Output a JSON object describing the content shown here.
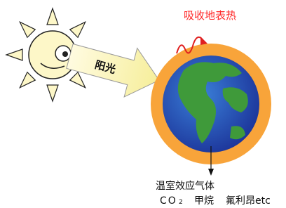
{
  "absorb_label": "吸收地表热",
  "sunlight_label": "阳光",
  "gas_title": "温室效应气体",
  "gases": {
    "co2_main": "CO",
    "co2_sub": "2",
    "methane": "甲烷",
    "cfc": "氟利昂etc"
  }
}
